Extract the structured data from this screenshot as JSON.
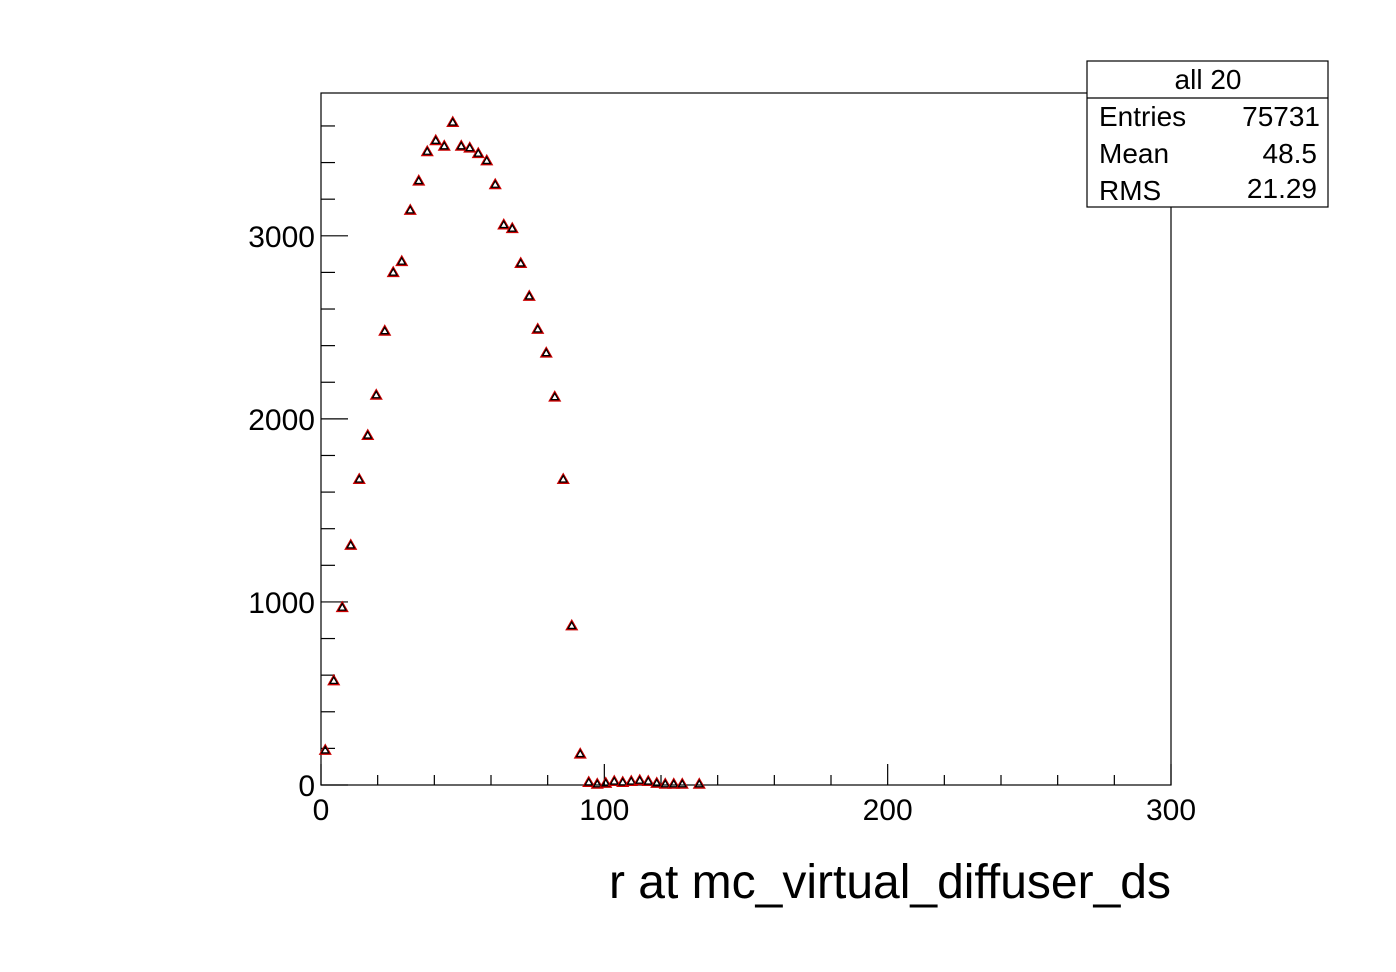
{
  "chart_data": {
    "type": "scatter",
    "title": "",
    "xlabel": "r at mc_virtual_diffuser_ds",
    "ylabel": "",
    "xlim": [
      0,
      300
    ],
    "ylim": [
      0,
      3780
    ],
    "grid": false,
    "x_ticks": [
      0,
      100,
      200,
      300
    ],
    "x_tick_labels": [
      "0",
      "100",
      "200",
      "300"
    ],
    "y_ticks": [
      0,
      1000,
      2000,
      3000
    ],
    "y_tick_labels": [
      "0",
      "1000",
      "2000",
      "3000"
    ],
    "series": [
      {
        "marker": "open-triangle",
        "color": "#000000",
        "outline_color": "#cc0000",
        "x": [
          1.5,
          4.5,
          7.5,
          10.5,
          13.5,
          16.5,
          19.5,
          22.5,
          25.5,
          28.5,
          31.5,
          34.5,
          37.5,
          40.5,
          43.5,
          46.5,
          49.5,
          52.5,
          55.5,
          58.5,
          61.5,
          64.5,
          67.5,
          70.5,
          73.5,
          76.5,
          79.5,
          82.5,
          85.5,
          88.5,
          91.5,
          94.5,
          97.5,
          100.5,
          103.5,
          106.5,
          109.5,
          112.5,
          115.5,
          118.5,
          121.5,
          124.5,
          127.5,
          133.5
        ],
        "y": [
          190,
          570,
          970,
          1310,
          1670,
          1910,
          2130,
          2480,
          2800,
          2860,
          3140,
          3300,
          3460,
          3520,
          3490,
          3620,
          3490,
          3480,
          3450,
          3410,
          3280,
          3060,
          3040,
          2850,
          2670,
          2490,
          2360,
          2120,
          1670,
          870,
          170,
          15,
          5,
          10,
          20,
          15,
          20,
          25,
          20,
          10,
          5,
          5,
          5,
          5
        ]
      }
    ]
  },
  "stats_box": {
    "title": "all 20",
    "rows": [
      {
        "label": "Entries",
        "value": "75731"
      },
      {
        "label": "Mean",
        "value": "48.5"
      },
      {
        "label": "RMS",
        "value": "21.29"
      }
    ]
  }
}
